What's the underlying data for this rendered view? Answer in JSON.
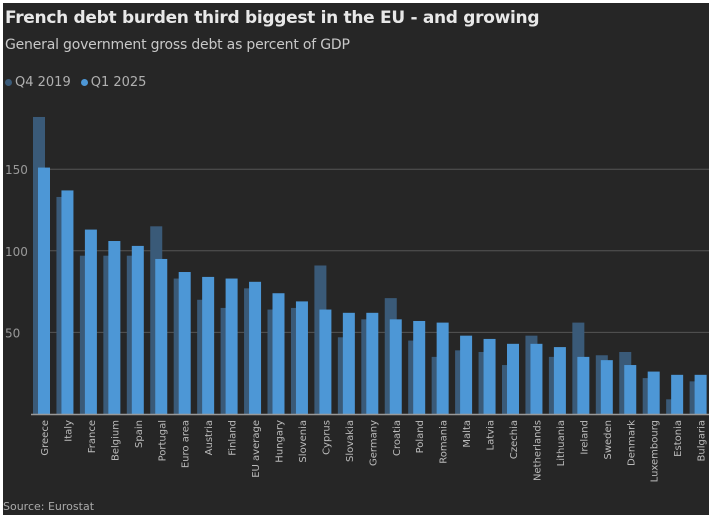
{
  "chart_data": {
    "type": "bar",
    "title": "French debt burden third biggest in the EU - and growing",
    "subtitle": "General government gross debt as percent of GDP",
    "source": "Source: Eurostat",
    "xlabel": "",
    "ylabel": "",
    "ylim": [
      0,
      185
    ],
    "yticks": [
      50,
      100,
      150
    ],
    "grid": true,
    "legend_position": "top-left",
    "categories": [
      "Greece",
      "Italy",
      "France",
      "Belgium",
      "Spain",
      "Portugal",
      "Euro area",
      "Austria",
      "Finland",
      "EU average",
      "Hungary",
      "Slovenia",
      "Cyprus",
      "Slovakia",
      "Germany",
      "Croatia",
      "Poland",
      "Romania",
      "Malta",
      "Latvia",
      "Czechia",
      "Netherlands",
      "Lithuania",
      "Ireland",
      "Sweden",
      "Denmark",
      "Luxembourg",
      "Estonia",
      "Bulgaria"
    ],
    "series": [
      {
        "name": "Q4 2019",
        "color": "#3a5a78",
        "values": [
          182,
          133,
          97,
          97,
          97,
          115,
          83,
          70,
          65,
          77,
          64,
          65,
          91,
          47,
          58,
          71,
          45,
          35,
          39,
          38,
          30,
          48,
          35,
          56,
          36,
          38,
          22,
          9,
          20
        ]
      },
      {
        "name": "Q1 2025",
        "color": "#4d97d6",
        "values": [
          151,
          137,
          113,
          106,
          103,
          95,
          87,
          84,
          83,
          81,
          74,
          69,
          64,
          62,
          62,
          58,
          57,
          56,
          48,
          46,
          43,
          43,
          41,
          35,
          33,
          30,
          26,
          24,
          24
        ]
      }
    ]
  }
}
